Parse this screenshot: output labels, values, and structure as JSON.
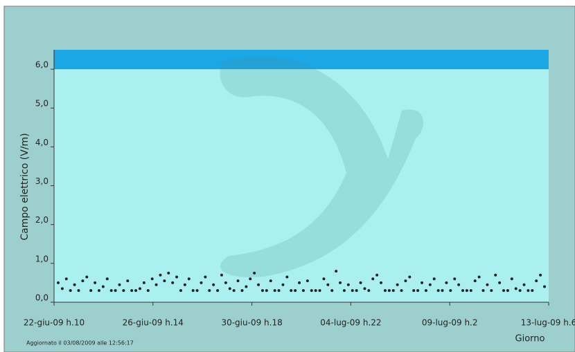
{
  "chart_data": {
    "type": "dot",
    "y_label": "Campo elettrico (V/m)",
    "x_label": "Giorno",
    "footer": "Aggiornato il 03/08/2009 alle 12:56:17",
    "ylim": [
      0,
      6.5
    ],
    "yticks": [
      {
        "value": 0,
        "label": "0,0"
      },
      {
        "value": 1,
        "label": "1,0"
      },
      {
        "value": 2,
        "label": "2,0"
      },
      {
        "value": 3,
        "label": "3,0"
      },
      {
        "value": 4,
        "label": "4,0"
      },
      {
        "value": 5,
        "label": "5,0"
      },
      {
        "value": 6,
        "label": "6,0"
      }
    ],
    "limit_band": [
      6,
      6.5
    ],
    "band_color": "#1ba6e6",
    "plot_color": "#aaf0f0",
    "color": "#222222",
    "xticks": [
      "22-giu-09 h.10",
      "26-giu-09 h.14",
      "30-giu-09 h.18",
      "04-lug-09 h.22",
      "09-lug-09 h.2",
      "13-lug-09 h.6"
    ],
    "values": [
      0.5,
      0.35,
      0.6,
      0.3,
      0.45,
      0.3,
      0.55,
      0.65,
      0.3,
      0.5,
      0.3,
      0.4,
      0.6,
      0.3,
      0.3,
      0.45,
      0.3,
      0.55,
      0.3,
      0.3,
      0.35,
      0.5,
      0.3,
      0.6,
      0.45,
      0.7,
      0.55,
      0.75,
      0.5,
      0.65,
      0.3,
      0.45,
      0.6,
      0.3,
      0.3,
      0.5,
      0.65,
      0.3,
      0.45,
      0.3,
      0.7,
      0.5,
      0.35,
      0.3,
      0.55,
      0.3,
      0.4,
      0.6,
      0.75,
      0.45,
      0.3,
      0.3,
      0.55,
      0.3,
      0.3,
      0.45,
      0.65,
      0.3,
      0.3,
      0.5,
      0.3,
      0.55,
      0.3,
      0.3,
      0.3,
      0.6,
      0.45,
      0.3,
      0.8,
      0.5,
      0.3,
      0.45,
      0.3,
      0.3,
      0.5,
      0.35,
      0.3,
      0.6,
      0.7,
      0.5,
      0.3,
      0.3,
      0.3,
      0.45,
      0.3,
      0.55,
      0.65,
      0.3,
      0.3,
      0.5,
      0.3,
      0.45,
      0.6,
      0.3,
      0.3,
      0.5,
      0.3,
      0.6,
      0.45,
      0.3,
      0.3,
      0.3,
      0.55,
      0.65,
      0.3,
      0.45,
      0.3,
      0.7,
      0.5,
      0.3,
      0.3,
      0.6,
      0.35,
      0.3,
      0.45,
      0.3,
      0.3,
      0.55,
      0.7,
      0.4
    ]
  }
}
